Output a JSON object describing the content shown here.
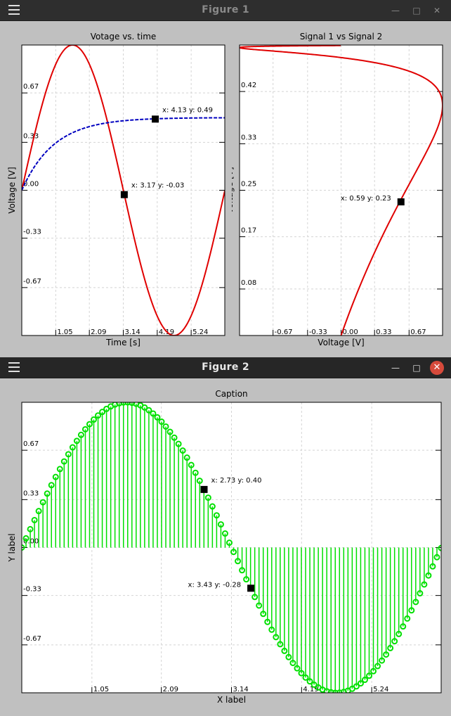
{
  "windows": [
    {
      "title": "Figure 1",
      "buttons": {
        "menu_icon": "hamburger-icon",
        "minimize_icon": "minimize-icon",
        "maximize_icon": "maximize-icon",
        "close_icon": "close-icon"
      },
      "active": false
    },
    {
      "title": "Figure 2",
      "buttons": {
        "menu_icon": "hamburger-icon",
        "minimize_icon": "minimize-icon",
        "maximize_icon": "maximize-icon",
        "close_icon": "close-icon"
      },
      "active": true
    }
  ],
  "colors": {
    "red": "#e00000",
    "blue": "#0000c0",
    "green": "#00e000",
    "grid": "#d4d4d4",
    "window_bg": "#c0c0c0"
  },
  "chart_data": [
    {
      "type": "line",
      "title": "Votage vs. time",
      "xlabel": "Time [s]",
      "ylabel": "Voltage [V]",
      "xlim": [
        0,
        6.28
      ],
      "ylim": [
        -1,
        1
      ],
      "xticks": [
        "1.05",
        "2.09",
        "3.14",
        "4.19",
        "5.24"
      ],
      "xtick_values": [
        1.05,
        2.09,
        3.14,
        4.19,
        5.24
      ],
      "yticks": [
        "0.67",
        "0.33",
        "0.00",
        "-0.33",
        "-0.67"
      ],
      "ytick_values": [
        0.67,
        0.33,
        0.0,
        -0.33,
        -0.67
      ],
      "grid": true,
      "series": [
        {
          "style": "solid",
          "color": "#e00000",
          "function": "sin(x)",
          "x_range": [
            0,
            6.28
          ]
        },
        {
          "style": "dashed",
          "color": "#0000c0",
          "function": "0.5*(1-exp(-x))",
          "x_range": [
            0,
            6.28
          ]
        }
      ],
      "markers": [
        {
          "x": 4.13,
          "y": 0.49,
          "label": "x: 4.13 y: 0.49",
          "label_side": "right"
        },
        {
          "x": 3.17,
          "y": -0.03,
          "label": "x: 3.17 y: -0.03",
          "label_side": "right"
        }
      ]
    },
    {
      "type": "line",
      "title": "Signal 1 vs Signal 2",
      "xlabel": "Voltage [V]",
      "ylabel": "Voltage [V]",
      "xlim": [
        -1,
        1
      ],
      "ylim": [
        0,
        0.5
      ],
      "xticks": [
        "-0.67",
        "-0.33",
        "0.00",
        "0.33",
        "0.67"
      ],
      "xtick_values": [
        -0.67,
        -0.33,
        0.0,
        0.33,
        0.67
      ],
      "yticks": [
        "0.42",
        "0.33",
        "0.25",
        "0.17",
        "0.08"
      ],
      "ytick_values": [
        0.42,
        0.33,
        0.25,
        0.17,
        0.08
      ],
      "grid": true,
      "series": [
        {
          "style": "solid",
          "color": "#e00000",
          "function": "parametric: x=sin(t), y=0.5*(1-exp(-t))",
          "t_range": [
            0,
            6.28
          ]
        }
      ],
      "markers": [
        {
          "x": 0.59,
          "y": 0.23,
          "label": "x: 0.59 y: 0.23",
          "label_side": "left"
        }
      ]
    },
    {
      "type": "stem",
      "title": "Caption",
      "xlabel": "X label",
      "ylabel": "Y label",
      "xlim": [
        0,
        6.28
      ],
      "ylim": [
        -1,
        1
      ],
      "xticks": [
        "1.05",
        "2.09",
        "3.14",
        "4.19",
        "5.24"
      ],
      "xtick_values": [
        1.05,
        2.09,
        3.14,
        4.19,
        5.24
      ],
      "yticks": [
        "0.67",
        "0.33",
        "0.00",
        "-0.33",
        "-0.67"
      ],
      "ytick_values": [
        0.67,
        0.33,
        0.0,
        -0.33,
        -0.67
      ],
      "grid": true,
      "series": [
        {
          "style": "stem-circle",
          "color": "#00e000",
          "function": "sin(x)",
          "x_range": [
            0,
            6.28
          ],
          "n_points": 100
        }
      ],
      "markers": [
        {
          "x": 2.73,
          "y": 0.4,
          "label": "x: 2.73 y: 0.40",
          "label_side": "right"
        },
        {
          "x": 3.43,
          "y": -0.28,
          "label": "x: 3.43 y: -0.28",
          "label_side": "left"
        }
      ]
    }
  ]
}
